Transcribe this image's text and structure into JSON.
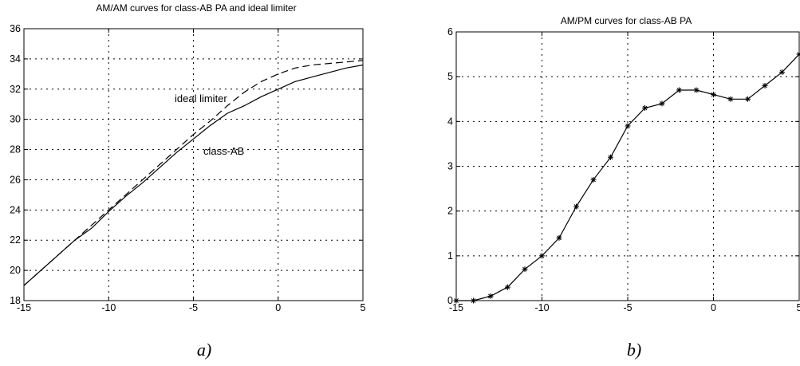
{
  "chart_data": [
    {
      "type": "line",
      "title": "AM/AM curves for class-AB PA and ideal limiter",
      "caption": "a)",
      "xlabel": "",
      "ylabel": "",
      "xlim": [
        -15,
        5
      ],
      "ylim": [
        18,
        36
      ],
      "xticks": [
        -15,
        -10,
        -5,
        0,
        5
      ],
      "yticks": [
        18,
        20,
        22,
        24,
        26,
        28,
        30,
        32,
        34,
        36
      ],
      "xtick_labels": [
        "-15",
        "-10",
        "-5",
        "0",
        "5"
      ],
      "ytick_labels": [
        "18",
        "20",
        "22",
        "24",
        "26",
        "28",
        "30",
        "32",
        "34",
        "36"
      ],
      "grid": true,
      "legend": "none",
      "series": [
        {
          "name": "class-AB",
          "style": "solid",
          "color": "#000000",
          "x": [
            -15,
            -14,
            -13,
            -12,
            -11,
            -10,
            -9,
            -8,
            -7,
            -6,
            -5,
            -4,
            -3,
            -2,
            -1,
            0,
            1,
            2,
            3,
            4,
            5
          ],
          "y": [
            19.0,
            20.0,
            21.0,
            22.0,
            22.8,
            23.9,
            24.9,
            25.8,
            26.8,
            27.8,
            28.7,
            29.6,
            30.4,
            30.9,
            31.5,
            32.0,
            32.5,
            32.8,
            33.1,
            33.4,
            33.6
          ]
        },
        {
          "name": "ideal limiter",
          "style": "dashed",
          "color": "#000000",
          "x": [
            -15,
            -14,
            -13,
            -12,
            -11,
            -10,
            -9,
            -8,
            -7,
            -6,
            -5,
            -4,
            -3,
            -2,
            -1,
            0,
            1,
            2,
            3,
            4,
            5
          ],
          "y": [
            19.0,
            20.0,
            21.0,
            22.0,
            23.0,
            24.0,
            25.0,
            26.0,
            27.0,
            28.0,
            29.0,
            29.9,
            30.9,
            31.8,
            32.5,
            33.0,
            33.4,
            33.6,
            33.7,
            33.8,
            33.9
          ]
        }
      ],
      "annotations": [
        {
          "text": "ideal limiter",
          "x": -2.5,
          "y": 32.75
        },
        {
          "text": "class-AB",
          "x": -1.5,
          "y": 29.5
        }
      ]
    },
    {
      "type": "line",
      "title": "AM/PM curves for class-AB PA",
      "caption": "b)",
      "xlabel": "",
      "ylabel": "",
      "xlim": [
        -15,
        5
      ],
      "ylim": [
        0,
        6
      ],
      "xticks": [
        -15,
        -10,
        -5,
        0,
        5
      ],
      "yticks": [
        0,
        1,
        2,
        3,
        4,
        5,
        6
      ],
      "xtick_labels": [
        "-15",
        "-10",
        "-5",
        "0",
        "5"
      ],
      "ytick_labels": [
        "0",
        "1",
        "2",
        "3",
        "4",
        "5",
        "6"
      ],
      "grid": true,
      "legend": "none",
      "series": [
        {
          "name": "",
          "style": "solid",
          "marker": "asterisk",
          "color": "#000000",
          "x": [
            -15,
            -14,
            -13,
            -12,
            -11,
            -10,
            -9,
            -8,
            -7,
            -6,
            -5,
            -4,
            -3,
            -2,
            -1,
            0,
            1,
            2,
            3,
            4,
            5
          ],
          "y": [
            0.0,
            0.0,
            0.1,
            0.3,
            0.7,
            1.0,
            1.4,
            2.1,
            2.7,
            3.2,
            3.9,
            4.3,
            4.4,
            4.7,
            4.7,
            4.6,
            4.5,
            4.5,
            4.8,
            5.1,
            5.5
          ]
        }
      ],
      "annotations": []
    }
  ]
}
